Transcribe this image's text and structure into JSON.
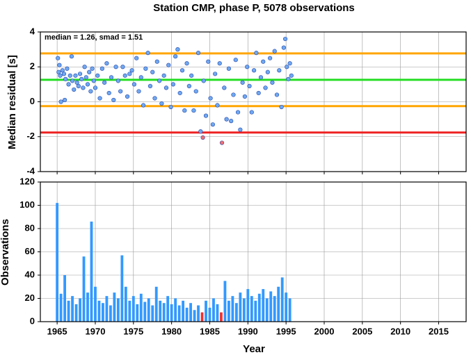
{
  "chart_data": [
    {
      "type": "scatter",
      "title": "Station CMP, phase P, 5078 observations",
      "ylabel": "Median residual [s]",
      "annotation": "median = 1.26, smad = 1.51",
      "xlim": [
        1962.8,
        2018.6
      ],
      "xticks": [
        1965,
        1970,
        1975,
        1980,
        1985,
        1990,
        1995,
        2000,
        2005,
        2010,
        2015
      ],
      "ylim": [
        -4,
        4
      ],
      "yticks": [
        -4,
        -2,
        0,
        2,
        4
      ],
      "grid": true,
      "hlines": [
        {
          "value": 2.77,
          "color": "#ffa500"
        },
        {
          "value": 1.26,
          "color": "#22dd22"
        },
        {
          "value": -0.25,
          "color": "#ffa500"
        },
        {
          "value": -1.76,
          "color": "#ee2222"
        }
      ],
      "series": [
        {
          "color": "#6fa8f0",
          "x": [
            1965.1,
            1965.2,
            1965.3,
            1965.4,
            1965.5,
            1965.7,
            1965.9,
            1966.0,
            1966.1,
            1966.3,
            1966.5,
            1966.7,
            1966.9,
            1967.0,
            1967.2,
            1967.4,
            1967.6,
            1967.8,
            1968.0,
            1968.2,
            1968.4,
            1968.6,
            1968.8,
            1969.0,
            1969.2,
            1969.4,
            1969.6,
            1969.8,
            1970.0,
            1970.3,
            1970.6,
            1970.9,
            1971.2,
            1971.5,
            1971.8,
            1972.1,
            1972.4,
            1972.7,
            1973.0,
            1973.3,
            1973.6,
            1973.9,
            1974.2,
            1974.5,
            1974.8,
            1975.1,
            1975.4,
            1975.7,
            1976.0,
            1976.3,
            1976.6,
            1976.9,
            1977.2,
            1977.5,
            1977.8,
            1978.1,
            1978.4,
            1978.7,
            1979.0,
            1979.3,
            1979.6,
            1979.9,
            1980.2,
            1980.5,
            1980.8,
            1981.1,
            1981.4,
            1981.7,
            1982.0,
            1982.3,
            1982.6,
            1982.9,
            1983.2,
            1983.5,
            1983.8,
            1984.2,
            1984.5,
            1984.8,
            1985.1,
            1985.4,
            1985.7,
            1986.0,
            1986.3,
            1986.9,
            1987.2,
            1987.5,
            1987.8,
            1988.1,
            1988.4,
            1988.7,
            1989.0,
            1989.3,
            1989.6,
            1989.9,
            1990.2,
            1990.5,
            1990.8,
            1991.1,
            1991.4,
            1991.7,
            1992.0,
            1992.3,
            1992.6,
            1992.9,
            1993.2,
            1993.5,
            1993.8,
            1994.1,
            1994.4,
            1994.7,
            1994.9,
            1995.1,
            1995.3,
            1995.5,
            1995.7
          ],
          "y": [
            2.5,
            1.7,
            2.1,
            1.5,
            0.0,
            1.8,
            1.6,
            0.1,
            1.3,
            1.9,
            1.0,
            1.5,
            2.6,
            1.2,
            0.7,
            1.5,
            1.1,
            0.9,
            1.6,
            1.3,
            0.8,
            2.0,
            1.4,
            1.0,
            1.7,
            0.6,
            1.9,
            1.2,
            0.8,
            1.5,
            0.2,
            1.9,
            1.1,
            2.2,
            0.5,
            1.4,
            0.1,
            2.0,
            1.2,
            0.6,
            2.0,
            1.5,
            0.3,
            1.6,
            1.8,
            1.0,
            2.5,
            0.6,
            1.4,
            -0.2,
            1.9,
            2.8,
            0.9,
            1.7,
            0.2,
            2.3,
            1.2,
            -0.1,
            1.5,
            0.8,
            2.1,
            -0.3,
            1.0,
            2.6,
            3.0,
            0.5,
            1.8,
            -0.5,
            2.2,
            0.9,
            1.5,
            -0.5,
            0.6,
            2.8,
            -1.7,
            1.2,
            -0.8,
            2.3,
            0.2,
            -1.3,
            1.6,
            -0.2,
            2.2,
            0.8,
            -1.0,
            1.9,
            -1.1,
            0.4,
            2.4,
            -0.6,
            -1.6,
            1.1,
            0.3,
            2.0,
            0.9,
            -0.6,
            1.8,
            2.8,
            0.5,
            1.4,
            2.3,
            0.8,
            1.7,
            2.5,
            1.1,
            2.9,
            0.4,
            1.8,
            -0.3,
            3.1,
            3.6,
            2.0,
            1.3,
            2.2,
            1.5
          ]
        },
        {
          "color": "#f07070",
          "x": [
            1984.1,
            1986.6
          ],
          "y": [
            -2.05,
            -2.35
          ]
        }
      ]
    },
    {
      "type": "bar",
      "ylabel": "Observations",
      "xlabel": "Year",
      "xlim": [
        1962.8,
        2018.6
      ],
      "xticks": [
        1965,
        1970,
        1975,
        1980,
        1985,
        1990,
        1995,
        2000,
        2005,
        2010,
        2015
      ],
      "ylim": [
        0,
        120
      ],
      "yticks": [
        0,
        20,
        40,
        60,
        80,
        100,
        120
      ],
      "grid": true,
      "bar_width": 0.35,
      "series": [
        {
          "color": "#3399ff",
          "x": [
            1965.0,
            1965.5,
            1966.0,
            1966.5,
            1967.0,
            1967.5,
            1968.0,
            1968.5,
            1969.0,
            1969.5,
            1970.0,
            1970.5,
            1971.0,
            1971.5,
            1972.0,
            1972.5,
            1973.0,
            1973.5,
            1974.0,
            1974.5,
            1975.0,
            1975.5,
            1976.0,
            1976.5,
            1977.0,
            1977.5,
            1978.0,
            1978.5,
            1979.0,
            1979.5,
            1980.0,
            1980.5,
            1981.0,
            1981.5,
            1982.0,
            1982.5,
            1983.0,
            1983.5,
            1984.5,
            1985.0,
            1985.5,
            1986.0,
            1987.0,
            1987.5,
            1988.0,
            1988.5,
            1989.0,
            1989.5,
            1990.0,
            1990.5,
            1991.0,
            1991.5,
            1992.0,
            1992.5,
            1993.0,
            1993.5,
            1994.0,
            1994.5,
            1995.0,
            1995.5
          ],
          "values": [
            102,
            24,
            40,
            18,
            22,
            15,
            20,
            56,
            25,
            86,
            30,
            18,
            16,
            22,
            14,
            25,
            20,
            57,
            30,
            18,
            22,
            15,
            24,
            17,
            20,
            14,
            30,
            18,
            16,
            22,
            15,
            20,
            14,
            18,
            12,
            16,
            10,
            14,
            18,
            12,
            20,
            15,
            35,
            18,
            22,
            16,
            25,
            20,
            28,
            22,
            18,
            24,
            28,
            20,
            26,
            22,
            30,
            38,
            25,
            20
          ]
        },
        {
          "color": "#ee3333",
          "x": [
            1984.0,
            1986.5
          ],
          "values": [
            8,
            8
          ]
        }
      ]
    }
  ]
}
